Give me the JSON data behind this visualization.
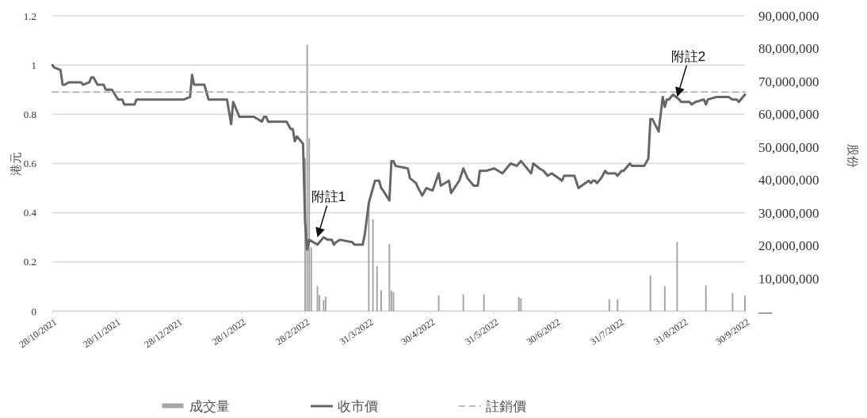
{
  "chart_data": {
    "type": "line",
    "xlabel": null,
    "ylabel": "港元",
    "y2label": "股份",
    "xlim": [
      "2021-10-28",
      "2022-09-30"
    ],
    "xticks": [
      {
        "value": "2021-10-28",
        "label": "28/10/2021"
      },
      {
        "value": "2021-11-28",
        "label": "28/11/2021"
      },
      {
        "value": "2021-12-28",
        "label": "28/12/2021"
      },
      {
        "value": "2022-01-28",
        "label": "28/1/2022"
      },
      {
        "value": "2022-02-28",
        "label": "28/2/2022"
      },
      {
        "value": "2022-03-31",
        "label": "31/3/2022"
      },
      {
        "value": "2022-04-30",
        "label": "30/4/2022"
      },
      {
        "value": "2022-05-31",
        "label": "31/5/2022"
      },
      {
        "value": "2022-06-30",
        "label": "30/6/2022"
      },
      {
        "value": "2022-07-31",
        "label": "31/7/2022"
      },
      {
        "value": "2022-08-31",
        "label": "31/8/2022"
      },
      {
        "value": "2022-09-30",
        "label": "30/9/2022"
      }
    ],
    "ylim": [
      0,
      1.2
    ],
    "yticks": [
      0,
      0.2,
      0.4,
      0.6,
      0.8,
      1,
      1.2
    ],
    "y2lim": [
      0,
      90000000
    ],
    "y2ticks": [
      {
        "value": 0,
        "label": "—"
      },
      {
        "value": 10000000,
        "label": "10,000,000"
      },
      {
        "value": 20000000,
        "label": "20,000,000"
      },
      {
        "value": 30000000,
        "label": "30,000,000"
      },
      {
        "value": 40000000,
        "label": "40,000,000"
      },
      {
        "value": 50000000,
        "label": "50,000,000"
      },
      {
        "value": 60000000,
        "label": "60,000,000"
      },
      {
        "value": 70000000,
        "label": "70,000,000"
      },
      {
        "value": 80000000,
        "label": "80,000,000"
      },
      {
        "value": 90000000,
        "label": "90,000,000"
      }
    ],
    "grid": "y",
    "legend": "bottom",
    "annotations": [
      {
        "text": "附註1",
        "x": "2022-03-06",
        "y": 0.3
      },
      {
        "text": "附註2",
        "x": "2022-08-28",
        "y": 0.87
      }
    ],
    "series": [
      {
        "name": "成交量",
        "type": "bar",
        "axis": "y2",
        "color": "#a6a6a6",
        "x": [
          "2022-02-28",
          "2022-03-01",
          "2022-03-02",
          "2022-03-03",
          "2022-03-06",
          "2022-03-07",
          "2022-03-09",
          "2022-03-10",
          "2022-03-31",
          "2022-04-02",
          "2022-04-04",
          "2022-04-06",
          "2022-04-10",
          "2022-04-11",
          "2022-04-12",
          "2022-05-04",
          "2022-05-16",
          "2022-05-26",
          "2022-06-12",
          "2022-06-13",
          "2022-07-26",
          "2022-07-30",
          "2022-08-15",
          "2022-08-22",
          "2022-08-28",
          "2022-09-11",
          "2022-09-24",
          "2022-09-30"
        ],
        "values": [
          46600000,
          81200000,
          52700000,
          19400000,
          7600000,
          4900000,
          3400000,
          4400000,
          33000000,
          28000000,
          13700000,
          6400000,
          20500000,
          6200000,
          5800000,
          4800000,
          5100000,
          5100000,
          4300000,
          3900000,
          3600000,
          3600000,
          10900000,
          7600000,
          21100000,
          7900000,
          5500000,
          4700000
        ]
      },
      {
        "name": "收市價",
        "line_style": "solid",
        "color": "#666666",
        "x": [
          "2021-10-28",
          "2021-10-29",
          "2021-11-01",
          "2021-11-02",
          "2021-11-03",
          "2021-11-05",
          "2021-11-11",
          "2021-11-12",
          "2021-11-15",
          "2021-11-16",
          "2021-11-17",
          "2021-11-19",
          "2021-11-22",
          "2021-11-23",
          "2021-11-26",
          "2021-11-29",
          "2021-12-01",
          "2021-12-02",
          "2021-12-07",
          "2021-12-08",
          "2021-12-31",
          "2022-01-03",
          "2022-01-04",
          "2022-01-05",
          "2022-01-10",
          "2022-01-12",
          "2022-01-21",
          "2022-01-23",
          "2022-01-24",
          "2022-01-27",
          "2022-02-03",
          "2022-02-05",
          "2022-02-07",
          "2022-02-08",
          "2022-02-09",
          "2022-02-10",
          "2022-02-19",
          "2022-02-21",
          "2022-02-22",
          "2022-02-23",
          "2022-02-24",
          "2022-02-27",
          "2022-02-28",
          "2022-03-01",
          "2022-03-02",
          "2022-03-06",
          "2022-03-09",
          "2022-03-11",
          "2022-03-13",
          "2022-03-14",
          "2022-03-15",
          "2022-03-17",
          "2022-03-23",
          "2022-03-24",
          "2022-03-28",
          "2022-03-29",
          "2022-03-31",
          "2022-04-03",
          "2022-04-05",
          "2022-04-06",
          "2022-04-07",
          "2022-04-10",
          "2022-04-11",
          "2022-04-12",
          "2022-04-13",
          "2022-04-19",
          "2022-04-20",
          "2022-04-23",
          "2022-04-24",
          "2022-04-26",
          "2022-04-28",
          "2022-05-01",
          "2022-05-04",
          "2022-05-05",
          "2022-05-09",
          "2022-05-10",
          "2022-05-14",
          "2022-05-16",
          "2022-05-18",
          "2022-05-21",
          "2022-05-23",
          "2022-05-24",
          "2022-05-27",
          "2022-05-31",
          "2022-06-04",
          "2022-06-06",
          "2022-06-08",
          "2022-06-11",
          "2022-06-13",
          "2022-06-18",
          "2022-06-19",
          "2022-06-22",
          "2022-06-24",
          "2022-06-26",
          "2022-06-28",
          "2022-07-03",
          "2022-07-04",
          "2022-07-09",
          "2022-07-11",
          "2022-07-16",
          "2022-07-17",
          "2022-07-18",
          "2022-07-19",
          "2022-07-20",
          "2022-07-22",
          "2022-07-24",
          "2022-07-25",
          "2022-07-29",
          "2022-07-30",
          "2022-08-01",
          "2022-08-02",
          "2022-08-05",
          "2022-08-06",
          "2022-08-12",
          "2022-08-14",
          "2022-08-15",
          "2022-08-16",
          "2022-08-19",
          "2022-08-21",
          "2022-08-22",
          "2022-08-23",
          "2022-08-24",
          "2022-08-26",
          "2022-08-29",
          "2022-08-30",
          "2022-09-03",
          "2022-09-04",
          "2022-09-06",
          "2022-09-10",
          "2022-09-11",
          "2022-09-12",
          "2022-09-16",
          "2022-09-22",
          "2022-09-24",
          "2022-09-26",
          "2022-09-27",
          "2022-09-30"
        ],
        "values": [
          1.0,
          0.99,
          0.98,
          0.92,
          0.92,
          0.93,
          0.93,
          0.92,
          0.93,
          0.95,
          0.95,
          0.92,
          0.92,
          0.9,
          0.9,
          0.86,
          0.86,
          0.84,
          0.84,
          0.86,
          0.86,
          0.87,
          0.96,
          0.92,
          0.92,
          0.86,
          0.86,
          0.76,
          0.85,
          0.79,
          0.79,
          0.78,
          0.77,
          0.79,
          0.79,
          0.77,
          0.77,
          0.74,
          0.74,
          0.69,
          0.71,
          0.68,
          0.36,
          0.25,
          0.29,
          0.27,
          0.3,
          0.29,
          0.29,
          0.27,
          0.28,
          0.29,
          0.28,
          0.27,
          0.27,
          0.31,
          0.44,
          0.53,
          0.53,
          0.5,
          0.49,
          0.45,
          0.61,
          0.61,
          0.59,
          0.58,
          0.54,
          0.52,
          0.5,
          0.47,
          0.5,
          0.49,
          0.56,
          0.51,
          0.53,
          0.48,
          0.53,
          0.58,
          0.54,
          0.51,
          0.51,
          0.57,
          0.57,
          0.58,
          0.56,
          0.58,
          0.6,
          0.59,
          0.61,
          0.56,
          0.6,
          0.58,
          0.57,
          0.55,
          0.56,
          0.53,
          0.55,
          0.55,
          0.5,
          0.53,
          0.52,
          0.53,
          0.53,
          0.52,
          0.54,
          0.57,
          0.56,
          0.56,
          0.55,
          0.57,
          0.57,
          0.6,
          0.59,
          0.59,
          0.62,
          0.78,
          0.78,
          0.73,
          0.87,
          0.83,
          0.86,
          0.86,
          0.88,
          0.86,
          0.85,
          0.85,
          0.84,
          0.85,
          0.86,
          0.84,
          0.86,
          0.87,
          0.87,
          0.86,
          0.86,
          0.85,
          0.88
        ]
      },
      {
        "name": "註銷價",
        "line_style": "dashed",
        "color": "#a6a6a6",
        "x": [
          "2021-10-28",
          "2022-09-30"
        ],
        "values": [
          0.89,
          0.89
        ]
      }
    ]
  }
}
